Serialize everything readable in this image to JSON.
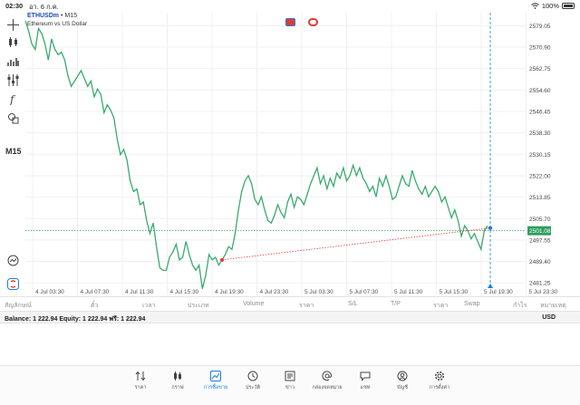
{
  "status": {
    "time": "02:30",
    "date": "อา. 6 ก.ค.",
    "battery": "100%"
  },
  "toolbar": {
    "timeframe": "M15"
  },
  "chart_header": {
    "symbol": "ETHUSDm",
    "separator": "•",
    "timeframe": "M15",
    "description": "Ethereum vs US Dollar"
  },
  "colors": {
    "line": "#3aaa6d",
    "price_tag": "#2e9e5e",
    "trade_line": "#e53935",
    "crosshair": "#1a7fe0",
    "accent": "#1a7fe0"
  },
  "chart_data": {
    "type": "line",
    "x_ticks": [
      "4 Jul 03:30",
      "4 Jul 07:30",
      "4 Jul 11:30",
      "4 Jul 15:30",
      "4 Jul 19:30",
      "4 Jul 23:30",
      "5 Jul 03:30",
      "5 Jul 07:30",
      "5 Jul 11:30",
      "5 Jul 15:30",
      "5 Jul 19:30",
      "5 Jul 23:30"
    ],
    "y_ticks": [
      "2579.05",
      "2570.90",
      "2562.75",
      "2554.60",
      "2546.45",
      "2538.30",
      "2530.15",
      "2522.00",
      "2513.85",
      "2505.70",
      "2497.55",
      "2489.40",
      "2481.25"
    ],
    "ylim": [
      2476.5,
      2584
    ],
    "current_price": "2501.08",
    "values": [
      2581,
      2577,
      2572,
      2570,
      2578,
      2576,
      2572,
      2566,
      2574,
      2570,
      2568,
      2569,
      2566,
      2560,
      2556,
      2558,
      2560,
      2562,
      2559,
      2556,
      2558,
      2552,
      2555,
      2553,
      2546,
      2549,
      2547,
      2544,
      2536,
      2530,
      2532,
      2528,
      2520,
      2516,
      2517,
      2511,
      2512,
      2505,
      2500,
      2504,
      2495,
      2487,
      2486,
      2486,
      2491,
      2493,
      2496,
      2490,
      2491,
      2497,
      2492,
      2488,
      2486,
      2488,
      2479,
      2484,
      2492,
      2490,
      2491,
      2488,
      2490,
      2492,
      2495,
      2494,
      2500,
      2509,
      2516,
      2520,
      2522,
      2519,
      2513,
      2511,
      2514,
      2509,
      2505,
      2504,
      2507,
      2511,
      2508,
      2506,
      2512,
      2515,
      2510,
      2514,
      2513,
      2511,
      2515,
      2519,
      2522,
      2525,
      2519,
      2522,
      2517,
      2521,
      2518,
      2523,
      2521,
      2525,
      2520,
      2522,
      2526,
      2522,
      2525,
      2521,
      2519,
      2516,
      2518,
      2514,
      2521,
      2518,
      2522,
      2518,
      2513,
      2514,
      2518,
      2522,
      2519,
      2518,
      2524,
      2520,
      2517,
      2515,
      2518,
      2514,
      2516,
      2518,
      2516,
      2512,
      2514,
      2510,
      2506,
      2509,
      2505,
      2499,
      2503,
      2501,
      2498,
      2500,
      2497,
      2494,
      2501,
      2503
    ]
  },
  "columns": [
    "สัญลักษณ์",
    "ตั๋ว",
    "เวลา",
    "ประเภท",
    "Volume",
    "ราคา",
    "S/L",
    "T/P",
    "ราคา",
    "Swap",
    "กำไร",
    "หมายเหตุ"
  ],
  "balance": {
    "text": "Balance: 1 222.94 Equity: 1 222.94 ฟรี: 1 222.94",
    "currency": "USD"
  },
  "tabs": [
    {
      "label": "ราคา",
      "icon": "sort-arrows-icon"
    },
    {
      "label": "กราฟ",
      "icon": "candles-icon"
    },
    {
      "label": "การซื้อขาย",
      "icon": "trade-chart-icon"
    },
    {
      "label": "ประวัติ",
      "icon": "clock-history-icon"
    },
    {
      "label": "ข่าว",
      "icon": "news-icon"
    },
    {
      "label": "กล่องจดหมาย",
      "icon": "at-mail-icon"
    },
    {
      "label": "แชท",
      "icon": "chat-icon"
    },
    {
      "label": "บัญชี",
      "icon": "account-icon"
    },
    {
      "label": "การตั้งค่า",
      "icon": "gear-icon"
    }
  ]
}
